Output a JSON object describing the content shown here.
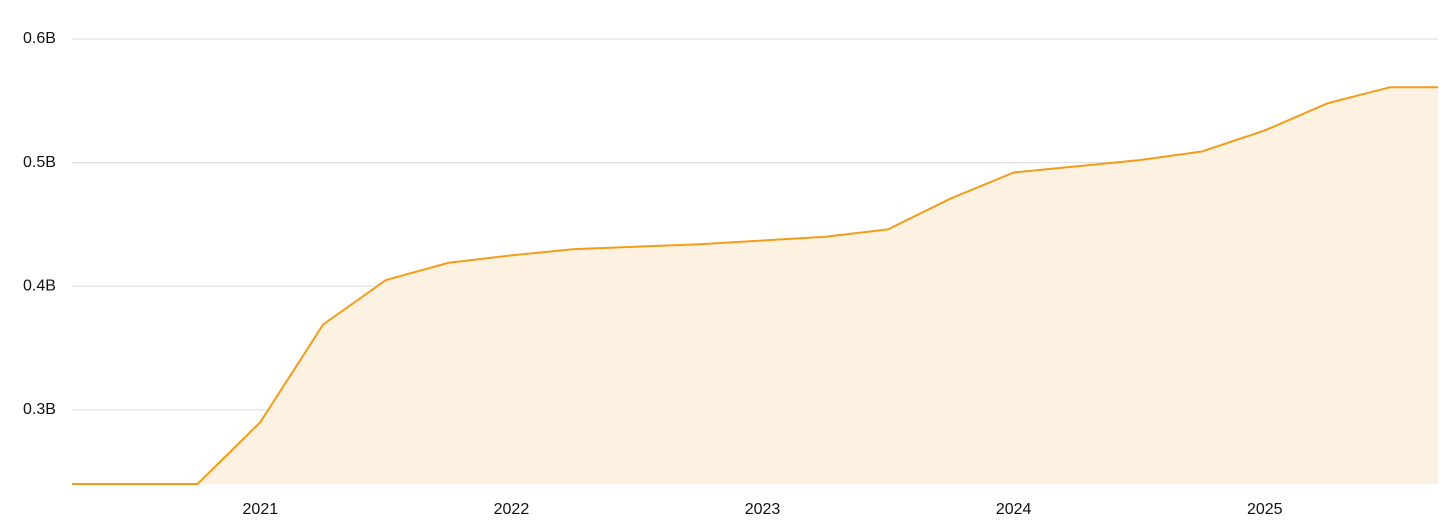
{
  "chart_data": {
    "type": "area",
    "x": [
      2020.25,
      2020.75,
      2021.0,
      2021.25,
      2021.5,
      2021.75,
      2022.0,
      2022.25,
      2022.5,
      2022.75,
      2023.0,
      2023.25,
      2023.5,
      2023.75,
      2024.0,
      2024.25,
      2024.5,
      2024.75,
      2025.0,
      2025.25,
      2025.5,
      2025.69
    ],
    "series": [
      {
        "color": "#f29d1a",
        "fill": "#fdf1e2",
        "values": [
          0.24,
          0.24,
          0.29,
          0.369,
          0.405,
          0.419,
          0.425,
          0.43,
          0.432,
          0.434,
          0.437,
          0.44,
          0.446,
          0.471,
          0.492,
          0.497,
          0.502,
          0.509,
          0.526,
          0.548,
          0.561,
          0.561
        ]
      }
    ],
    "xlim": [
      2020.25,
      2025.69
    ],
    "xticks": [
      2021,
      2022,
      2023,
      2024,
      2025
    ],
    "ylim": [
      0.24,
      0.6
    ],
    "yticks": [
      {
        "value": 0.3,
        "label": "0.3B"
      },
      {
        "value": 0.4,
        "label": "0.4B"
      },
      {
        "value": 0.5,
        "label": "0.5B"
      },
      {
        "value": 0.6,
        "label": "0.6B"
      }
    ],
    "grid": true
  }
}
